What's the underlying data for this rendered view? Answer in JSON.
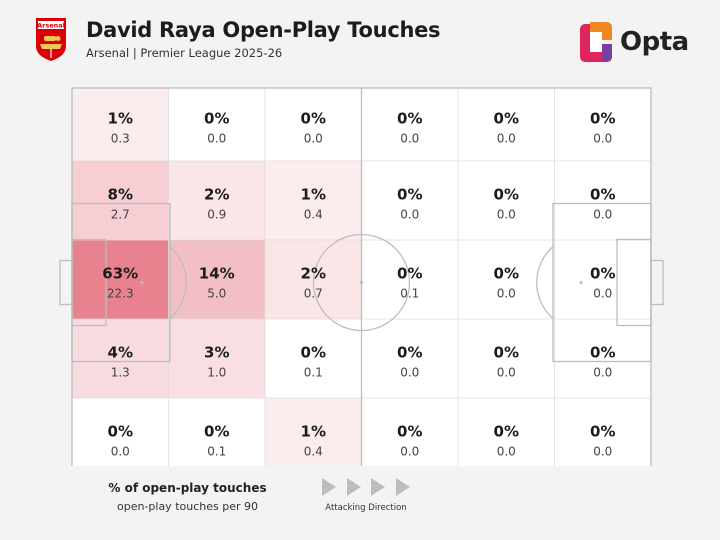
{
  "header": {
    "title": "David Raya Open-Play Touches",
    "subtitle": "Arsenal | Premier League 2025-26",
    "badge_text": "Arsenal",
    "brand": "Opta"
  },
  "colors": {
    "pitch_bg": "#fafafa",
    "line": "#bdbdbd",
    "heat_low": "#ffffff",
    "heat_high": "#e8828f",
    "opta_orange": "#f0871f",
    "opta_red": "#e0245e",
    "opta_purple": "#7b3fa0",
    "arsenal_red": "#db0007"
  },
  "chart_data": {
    "type": "heatmap",
    "title": "David Raya Open-Play Touches",
    "subtitle": "Arsenal | Premier League 2025-26",
    "value_label": "% of open-play touches",
    "secondary_label": "open-play touches per 90",
    "direction_label": "Attacking Direction",
    "columns": 6,
    "rows": 5,
    "percent": [
      [
        "1%",
        "0%",
        "0%",
        "0%",
        "0%",
        "0%"
      ],
      [
        "8%",
        "2%",
        "1%",
        "0%",
        "0%",
        "0%"
      ],
      [
        "63%",
        "14%",
        "2%",
        "0%",
        "0%",
        "0%"
      ],
      [
        "4%",
        "3%",
        "0%",
        "0%",
        "0%",
        "0%"
      ],
      [
        "0%",
        "0%",
        "1%",
        "0%",
        "0%",
        "0%"
      ]
    ],
    "per90": [
      [
        "0.3",
        "0.0",
        "0.0",
        "0.0",
        "0.0",
        "0.0"
      ],
      [
        "2.7",
        "0.9",
        "0.4",
        "0.0",
        "0.0",
        "0.0"
      ],
      [
        "22.3",
        "5.0",
        "0.7",
        "0.1",
        "0.0",
        "0.0"
      ],
      [
        "1.3",
        "1.0",
        "0.1",
        "0.0",
        "0.0",
        "0.0"
      ],
      [
        "0.0",
        "0.1",
        "0.4",
        "0.0",
        "0.0",
        "0.0"
      ]
    ]
  }
}
